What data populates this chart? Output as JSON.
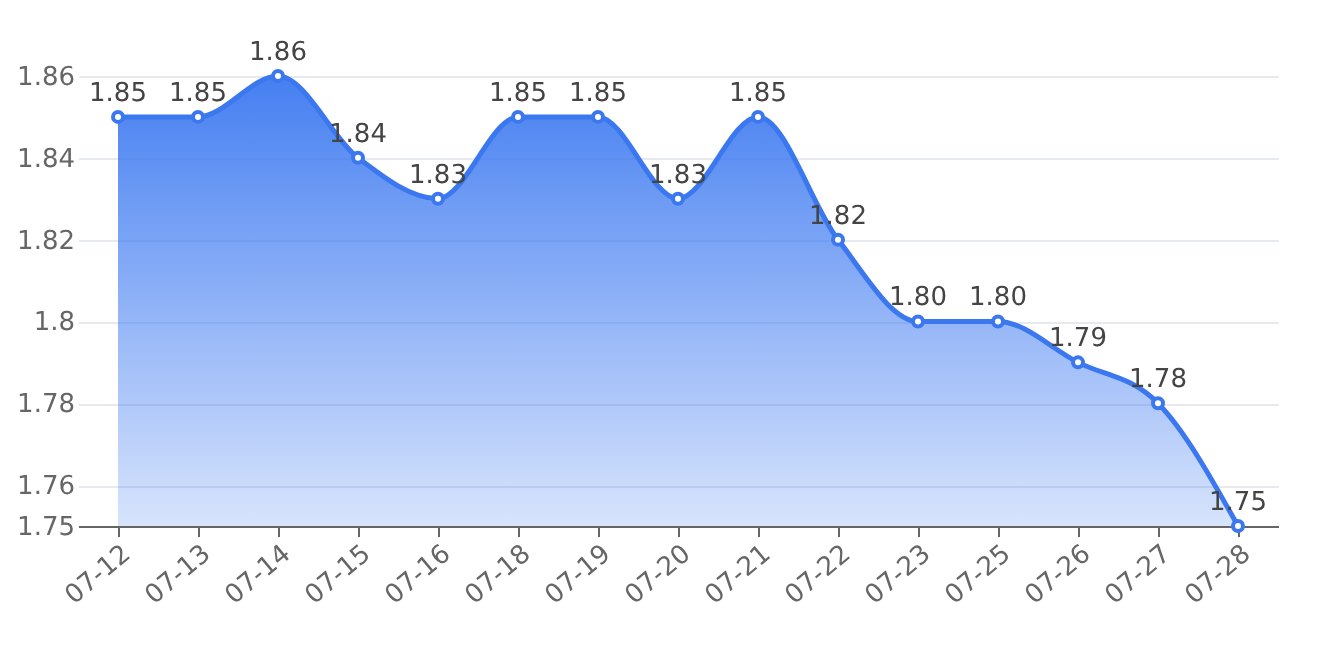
{
  "chart_data": {
    "type": "area",
    "categories": [
      "07-12",
      "07-13",
      "07-14",
      "07-15",
      "07-16",
      "07-18",
      "07-19",
      "07-20",
      "07-21",
      "07-22",
      "07-23",
      "07-25",
      "07-26",
      "07-27",
      "07-28"
    ],
    "series": [
      {
        "color": "#3b78f0",
        "values": [
          1.85,
          1.85,
          1.86,
          1.84,
          1.83,
          1.85,
          1.85,
          1.83,
          1.85,
          1.82,
          1.8,
          1.8,
          1.79,
          1.78,
          1.75
        ],
        "value_labels": [
          "1.85",
          "1.85",
          "1.86",
          "1.84",
          "1.83",
          "1.85",
          "1.85",
          "1.83",
          "1.85",
          "1.82",
          "1.80",
          "1.80",
          "1.79",
          "1.78",
          "1.75"
        ]
      }
    ],
    "ylim": [
      1.75,
      1.86
    ],
    "yticks": [
      1.75,
      1.76,
      1.78,
      1.8,
      1.82,
      1.84,
      1.86
    ],
    "grid": "y",
    "marker": "circle",
    "line_style": "solid"
  }
}
